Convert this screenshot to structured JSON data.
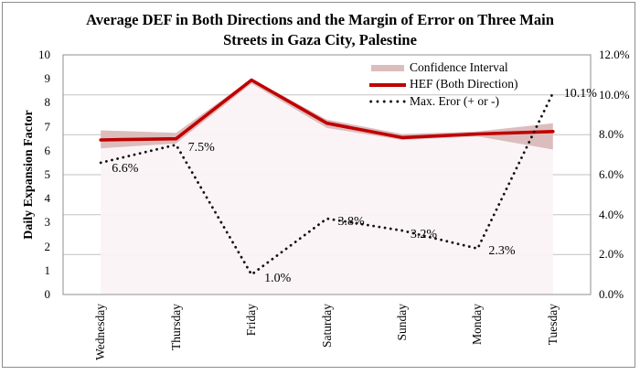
{
  "figure": {
    "title_line1": "Average DEF in Both Directions and the Margin of Error on Three Main",
    "title_line2": "Streets in Gaza City, Palestine"
  },
  "colors": {
    "hef_line": "#c00000",
    "confidence_band": "#dcbdbd",
    "confidence_area_light": "#fbf3f5",
    "max_error_dots": "#111111",
    "gridline": "#c2c2c2",
    "plot_border": "#8f8f8f",
    "outer_border": "#8c8c8c",
    "text": "#000000"
  },
  "chart_data": {
    "type": "line",
    "title": "Average DEF in Both Directions and the Margin of Error on Three Main Streets in Gaza City, Palestine",
    "categories": [
      "Wednesday",
      "Thursday",
      "Friday",
      "Saturday",
      "Sunday",
      "Monday",
      "Tuesday"
    ],
    "left_axis": {
      "label": "Daily Expansion Factor",
      "min": 0,
      "max": 10,
      "tick_values": [
        0,
        1,
        2,
        3,
        4,
        5,
        6,
        7,
        8,
        9,
        10
      ],
      "tick_labels": [
        "0",
        "1",
        "2",
        "3",
        "4",
        "5",
        "6",
        "7",
        "8",
        "9",
        "10"
      ]
    },
    "right_axis": {
      "min": 0,
      "max": 12,
      "tick_values": [
        0,
        2,
        4,
        6,
        8,
        10,
        12
      ],
      "tick_labels": [
        "0.0%",
        "2.0%",
        "4.0%",
        "6.0%",
        "8.0%",
        "10.0%",
        "12.0%"
      ]
    },
    "grid": {
      "horizontal_at_right_axis_ticks": true,
      "vertical": false
    },
    "legend": {
      "position": "top-right-inside",
      "border": false
    },
    "series": [
      {
        "name": "Confidence Interval",
        "type": "band",
        "axis": "left",
        "upper": [
          6.85,
          6.75,
          9.0,
          7.3,
          6.7,
          6.8,
          7.15
        ],
        "lower": [
          6.1,
          6.3,
          8.8,
          6.95,
          6.45,
          6.6,
          6.05
        ]
      },
      {
        "name": "HEF (Both Direction)",
        "type": "line",
        "axis": "left",
        "values": [
          6.45,
          6.5,
          8.95,
          7.15,
          6.55,
          6.7,
          6.8
        ]
      },
      {
        "name": "Max. Eror (+ or -)",
        "type": "dotted-line",
        "axis": "right",
        "values": [
          6.6,
          7.5,
          1.0,
          3.8,
          3.2,
          2.3,
          10.1
        ],
        "point_labels": [
          "6.6%",
          "7.5%",
          "1.0%",
          "3.8%",
          "3.2%",
          "2.3%",
          "10.1%"
        ],
        "label_offsets": [
          [
            12,
            7
          ],
          [
            13,
            4
          ],
          [
            14,
            5
          ],
          [
            12,
            4
          ],
          [
            9,
            5
          ],
          [
            12,
            3
          ],
          [
            12,
            2
          ]
        ]
      }
    ]
  }
}
